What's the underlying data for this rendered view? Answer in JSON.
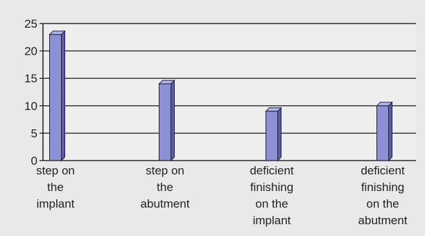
{
  "chart_data": {
    "type": "bar",
    "style": "3d",
    "categories": [
      [
        "step on",
        "the",
        "implant"
      ],
      [
        "step on",
        "the",
        "abutment"
      ],
      [
        "deficient",
        "finishing",
        "on the",
        "implant"
      ],
      [
        "deficient",
        "finishing",
        "on the",
        "abutment"
      ]
    ],
    "values": [
      23,
      14,
      9,
      10
    ],
    "title": "",
    "xlabel": "",
    "ylabel": "",
    "ylim": [
      0,
      25
    ],
    "yticks": [
      0,
      5,
      10,
      15,
      20,
      25
    ],
    "grid": true,
    "legend": "none",
    "colors": {
      "bar_front": "#8c90d4",
      "bar_side": "#5a5ea8",
      "bar_top": "#b3b6e8",
      "bar_outline": "#1e1e3c",
      "grid": "#2a2a2a",
      "plot_bg": "#eeeeee",
      "text": "#222222"
    }
  }
}
